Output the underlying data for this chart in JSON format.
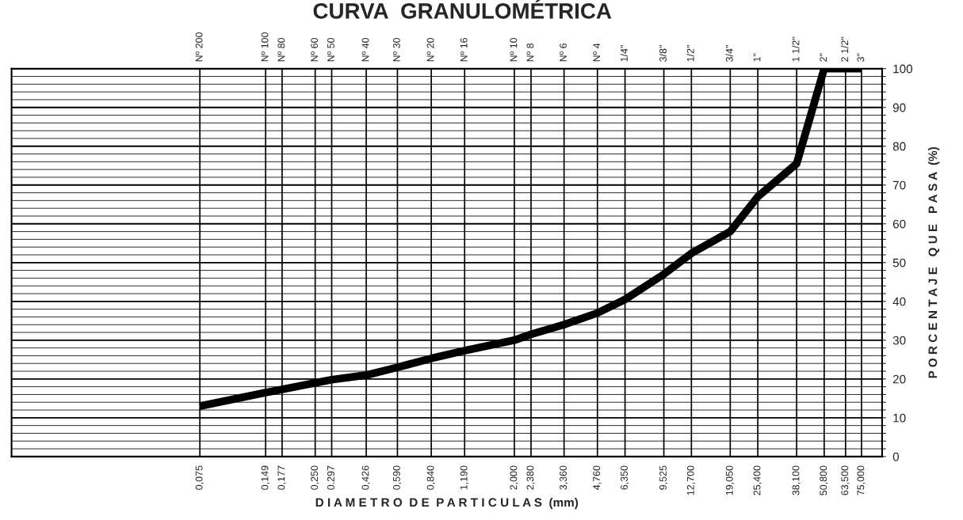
{
  "chart_data": {
    "type": "line",
    "title": "CURVA  GRANULOMÉTRICA",
    "xlabel": "D I A M E T R O  D E  P A R T I C U L A S  (mm)",
    "ylabel": "P O R C E N T A J E   Q U E   P A S A  (%)",
    "x": [
      0.075,
      0.149,
      0.177,
      0.25,
      0.297,
      0.426,
      0.59,
      0.84,
      1.19,
      2.0,
      2.38,
      3.36,
      4.76,
      6.35,
      9.525,
      12.7,
      19.05,
      25.4,
      38.1,
      50.8,
      63.5,
      75.0
    ],
    "series": [
      {
        "color": "#000000",
        "values": [
          13,
          16.5,
          17.3,
          19,
          19.8,
          21,
          23,
          25.3,
          27.3,
          30,
          31.5,
          34,
          37,
          40.5,
          47,
          52.4,
          58,
          67,
          75.5,
          100,
          100,
          100
        ]
      }
    ],
    "log": "x",
    "xlim": [
      0.0105,
      93
    ],
    "ylim": [
      0,
      100
    ],
    "xticks": [
      {
        "value": 0.075,
        "label": "0,075"
      },
      {
        "value": 0.149,
        "label": "0,149"
      },
      {
        "value": 0.177,
        "label": "0,177"
      },
      {
        "value": 0.25,
        "label": "0,250"
      },
      {
        "value": 0.297,
        "label": "0.297"
      },
      {
        "value": 0.426,
        "label": "0,426"
      },
      {
        "value": 0.59,
        "label": "0,590"
      },
      {
        "value": 0.84,
        "label": "0,840"
      },
      {
        "value": 1.19,
        "label": "1,190"
      },
      {
        "value": 2.0,
        "label": "2,000"
      },
      {
        "value": 2.38,
        "label": "2,380"
      },
      {
        "value": 3.36,
        "label": "3,360"
      },
      {
        "value": 4.76,
        "label": "4,760"
      },
      {
        "value": 6.35,
        "label": "6,350"
      },
      {
        "value": 9.525,
        "label": "9,525"
      },
      {
        "value": 12.7,
        "label": "12,700"
      },
      {
        "value": 19.05,
        "label": "19,050"
      },
      {
        "value": 25.4,
        "label": "25,400"
      },
      {
        "value": 38.1,
        "label": "38,100"
      },
      {
        "value": 50.8,
        "label": "50,800"
      },
      {
        "value": 63.5,
        "label": "63,500"
      },
      {
        "value": 75.0,
        "label": "75,000"
      }
    ],
    "annotations": [
      "Nº 200",
      "Nº 100",
      "Nº 80",
      "Nº 60",
      "Nº 50",
      "Nº 40",
      "Nº 30",
      "Nº 20",
      "Nº 16",
      "Nº 10",
      "Nº 8",
      "Nº 6",
      "Nº 4",
      "1/4\"",
      "3/8\"",
      "1/2\"",
      "3/4\"",
      "1\"",
      "1 1/2\"",
      "2\"",
      "2 1/2\"",
      "3\""
    ],
    "yticks": [
      0,
      {
        "value": 2,
        "label": null
      },
      {
        "value": 4,
        "label": null
      },
      {
        "value": 6,
        "label": null
      },
      {
        "value": 8,
        "label": null
      },
      10,
      {
        "value": 12,
        "label": null
      },
      {
        "value": 14,
        "label": null
      },
      {
        "value": 16,
        "label": null
      },
      {
        "value": 18,
        "label": null
      },
      20,
      {
        "value": 22,
        "label": null
      },
      {
        "value": 24,
        "label": null
      },
      {
        "value": 26,
        "label": null
      },
      {
        "value": 28,
        "label": null
      },
      30,
      {
        "value": 32,
        "label": null
      },
      {
        "value": 34,
        "label": null
      },
      {
        "value": 36,
        "label": null
      },
      {
        "value": 38,
        "label": null
      },
      40,
      {
        "value": 42,
        "label": null
      },
      {
        "value": 44,
        "label": null
      },
      {
        "value": 46,
        "label": null
      },
      {
        "value": 48,
        "label": null
      },
      50,
      {
        "value": 52,
        "label": null
      },
      {
        "value": 54,
        "label": null
      },
      {
        "value": 56,
        "label": null
      },
      {
        "value": 58,
        "label": null
      },
      60,
      {
        "value": 62,
        "label": null
      },
      {
        "value": 64,
        "label": null
      },
      {
        "value": 66,
        "label": null
      },
      {
        "value": 68,
        "label": null
      },
      70,
      {
        "value": 72,
        "label": null
      },
      {
        "value": 74,
        "label": null
      },
      {
        "value": 76,
        "label": null
      },
      {
        "value": 78,
        "label": null
      },
      80,
      {
        "value": 82,
        "label": null
      },
      {
        "value": 84,
        "label": null
      },
      {
        "value": 86,
        "label": null
      },
      {
        "value": 88,
        "label": null
      },
      90,
      {
        "value": 92,
        "label": null
      },
      {
        "value": 94,
        "label": null
      },
      {
        "value": 96,
        "label": null
      },
      {
        "value": 98,
        "label": null
      },
      100
    ],
    "grid": true,
    "marker": "none",
    "line_style": "solid"
  }
}
